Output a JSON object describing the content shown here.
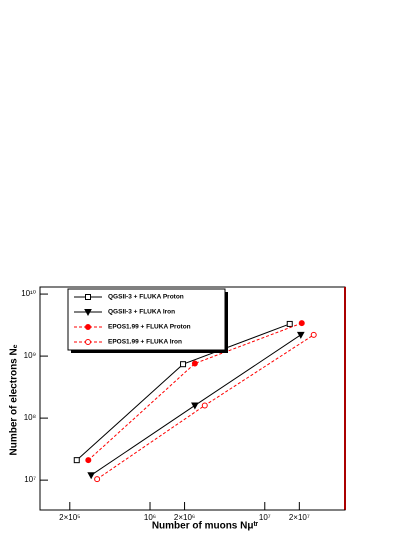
{
  "chart_data": {
    "type": "line",
    "xlabel": "Number of muons Nμᵗʳ",
    "ylabel": "Number of electrons Nₑ",
    "log_x": true,
    "log_y": true,
    "xlim": [
      110000,
      50000000
    ],
    "ylim": [
      3300000,
      13000000000
    ],
    "xticks": [
      {
        "value": 200000,
        "label": "2×10⁵"
      },
      {
        "value": 1000000,
        "label": "10⁶"
      },
      {
        "value": 2000000,
        "label": "2×10⁶"
      },
      {
        "value": 10000000,
        "label": "10⁷"
      },
      {
        "value": 20000000,
        "label": "2×10⁷"
      }
    ],
    "yticks": [
      {
        "value": 10000000,
        "label": "10⁷"
      },
      {
        "value": 100000000,
        "label": "10⁸"
      },
      {
        "value": 1000000000,
        "label": "10⁹"
      },
      {
        "value": 10000000000,
        "label": "10¹⁰"
      }
    ],
    "series": [
      {
        "name": "QGSII-3 + FLUKA Proton",
        "color": "#000000",
        "marker": "square-open",
        "dashed": false,
        "x": [
          230000,
          1940000,
          16500000
        ],
        "values": [
          21000000,
          740000000,
          3300000000
        ]
      },
      {
        "name": "QGSII-3 + FLUKA Iron",
        "color": "#000000",
        "marker": "triangle-down",
        "dashed": false,
        "x": [
          307000,
          2460000,
          20600000
        ],
        "values": [
          12000000,
          160000000,
          2200000000
        ]
      },
      {
        "name": "EPOS1.99 + FLUKA Proton",
        "color": "#ff0000",
        "marker": "circle",
        "dashed": true,
        "x": [
          290000,
          2460000,
          21000000
        ],
        "values": [
          21000000,
          760000000,
          3400000000
        ]
      },
      {
        "name": "EPOS1.99 + FLUKA Iron",
        "color": "#ff0000",
        "marker": "circle-open",
        "dashed": true,
        "x": [
          346000,
          3000000,
          26700000
        ],
        "values": [
          10400000,
          160000000,
          2200000000
        ]
      }
    ]
  }
}
